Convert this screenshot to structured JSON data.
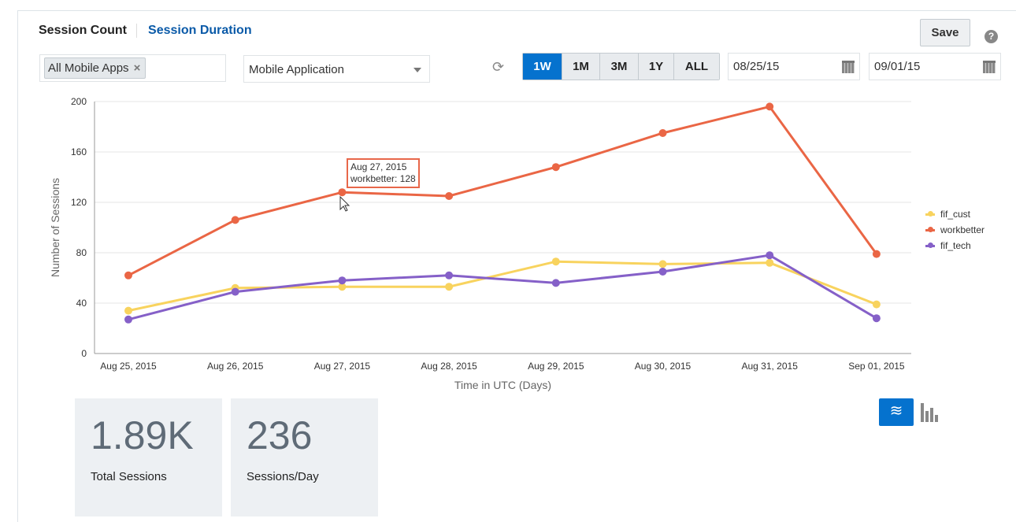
{
  "tabs": {
    "session_count": "Session Count",
    "session_duration": "Session Duration"
  },
  "filters": {
    "chip": "All Mobile Apps",
    "chip_remove": "×",
    "dimension": "Mobile Application"
  },
  "ranges": [
    "1W",
    "1M",
    "3M",
    "1Y",
    "ALL"
  ],
  "active_range": "1W",
  "dates": {
    "start": "08/25/15",
    "end": "09/01/15"
  },
  "save_label": "Save",
  "help": "?",
  "tooltip": {
    "date": "Aug 27, 2015",
    "text": "workbetter: 128"
  },
  "chart_data": {
    "type": "line",
    "xlabel": "Time in UTC (Days)",
    "ylabel": "Number of Sessions",
    "ylim": [
      0,
      200
    ],
    "yticks": [
      0,
      40,
      80,
      120,
      160,
      200
    ],
    "categories": [
      "Aug 25, 2015",
      "Aug 26, 2015",
      "Aug 27, 2015",
      "Aug 28, 2015",
      "Aug 29, 2015",
      "Aug 30, 2015",
      "Aug 31, 2015",
      "Sep 01, 2015"
    ],
    "legend_position": "right",
    "series": [
      {
        "name": "fif_cust",
        "color": "#f8d35e",
        "values": [
          34,
          52,
          53,
          53,
          73,
          71,
          72,
          39
        ]
      },
      {
        "name": "workbetter",
        "color": "#ea6645",
        "values": [
          62,
          106,
          128,
          125,
          148,
          175,
          196,
          79
        ]
      },
      {
        "name": "fif_tech",
        "color": "#8560c8",
        "values": [
          27,
          49,
          58,
          62,
          56,
          65,
          78,
          28
        ]
      }
    ]
  },
  "cards": [
    {
      "value": "1.89K",
      "label": "Total Sessions"
    },
    {
      "value": "236",
      "label": "Sessions/Day"
    }
  ]
}
